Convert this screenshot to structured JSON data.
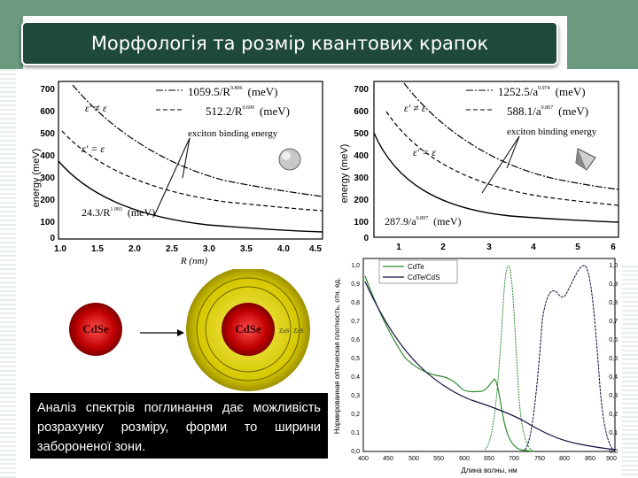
{
  "slide": {
    "title": "Морфологія та розмір квантових крапок",
    "caption": "Аналіз спектрів поглинання дає можливість розрахунку розміру, форми то ширини забороненої зони."
  },
  "left_chart": {
    "ylabel": "energy (meV)",
    "xlabel": "R (nm)",
    "xticks": [
      "1.0",
      "1.5",
      "2.0",
      "2.5",
      "3.0",
      "3.5",
      "4.0",
      "4.5"
    ],
    "yticks": [
      "0",
      "100",
      "200",
      "300",
      "400",
      "500",
      "600",
      "700"
    ],
    "legend_neq": "ε' ≠ ε",
    "legend_eq": "ε' = ε",
    "fit1": "1059.5/R",
    "fit1_exp": "0.806",
    "fit2": "512.2/R",
    "fit2_exp": "0.690",
    "unit1": "(meV)",
    "unit2": "(meV)",
    "annotation": "exciton binding energy",
    "fit3": "24.3/R",
    "fit3_exp": "1.993",
    "unit3": "(meV)"
  },
  "right_chart": {
    "ylabel": "energy (meV)",
    "xticks": [
      "1",
      "2",
      "3",
      "4",
      "5",
      "6"
    ],
    "yticks": [
      "0",
      "100",
      "200",
      "300",
      "400",
      "500",
      "600",
      "700"
    ],
    "legend_neq": "ε' ≠ ε",
    "legend_eq": "ε' = ε",
    "fit1": "1252.5/a",
    "fit1_exp": "0.974",
    "fit2": "588.1/a",
    "fit2_exp": "0.867",
    "unit1": "(meV)",
    "unit2": "(meV)",
    "annotation": "exciton binding energy",
    "fit3": "287.9/a",
    "fit3_exp": "0.897",
    "unit3": "(meV)"
  },
  "diagram": {
    "core_label": "CdSe",
    "shell_label": "CdSe",
    "zns1": "ZnS",
    "zns2": "ZnS"
  },
  "spectrum": {
    "ylabel": "Нормированная оптическая плотность, отн. ед.",
    "xlabel": "Длина волны, нм",
    "xticks": [
      "400",
      "450",
      "500",
      "550",
      "600",
      "650",
      "700",
      "750",
      "800",
      "850",
      "900"
    ],
    "yticks_left": [
      "0,0",
      "0,1",
      "0,2",
      "0,3",
      "0,4",
      "0,5",
      "0,6",
      "0,7",
      "0,8",
      "0,9",
      "1,0"
    ],
    "yticks_right": [
      "0,0",
      "0,1",
      "0,2",
      "0,3",
      "0,4",
      "0,5",
      "0,6",
      "0,7",
      "0,8",
      "0,9",
      "1,0"
    ],
    "legend1": "CdTe",
    "legend2": "CdTe/CdS",
    "colors": {
      "series1": "#2f8a2f",
      "series2": "#101040"
    }
  }
}
